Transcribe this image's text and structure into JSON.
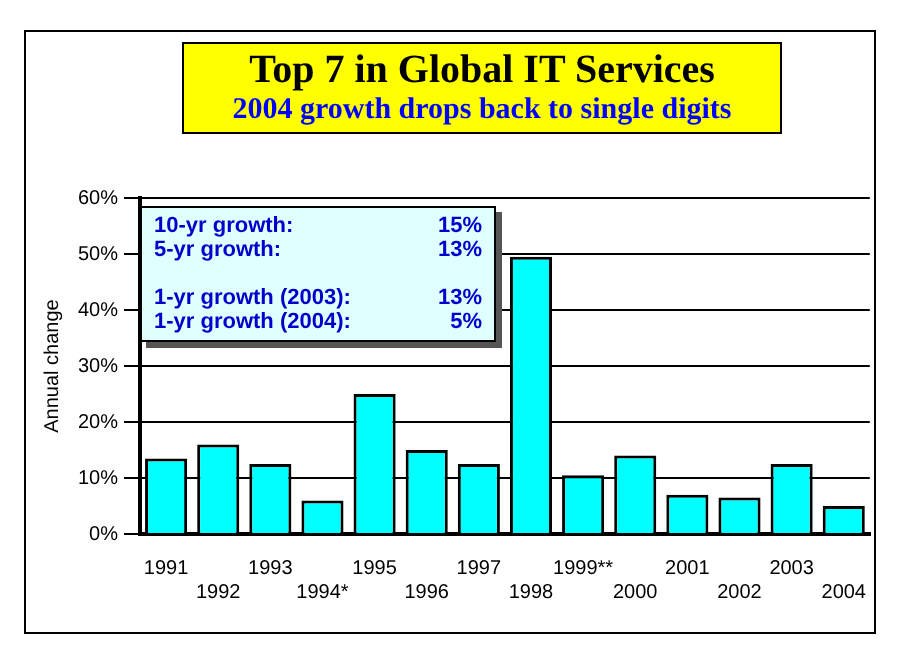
{
  "chart_data": {
    "type": "bar",
    "title": "Top 7 in Global IT Services",
    "subtitle": "2004 growth drops back to single digits",
    "ylabel": "Annual change",
    "categories": [
      "1991",
      "1992",
      "1993",
      "1994*",
      "1995",
      "1996",
      "1997",
      "1998",
      "1999**",
      "2000",
      "2001",
      "2002",
      "2003",
      "2004"
    ],
    "values": [
      13.5,
      16,
      12.5,
      6,
      25,
      15,
      12.5,
      49.5,
      10.5,
      14,
      7,
      6.5,
      12.5,
      5
    ],
    "color": "#00ffff",
    "ylim": [
      0,
      60
    ],
    "yticks": [
      {
        "value": 0,
        "label": "0%"
      },
      {
        "value": 10,
        "label": "10%"
      },
      {
        "value": 20,
        "label": "20%"
      },
      {
        "value": 30,
        "label": "30%"
      },
      {
        "value": 40,
        "label": "40%"
      },
      {
        "value": 50,
        "label": "50%"
      },
      {
        "value": 60,
        "label": "60%"
      }
    ],
    "grid": "y",
    "legend": false,
    "annotations": [
      "10-yr growth:   15%",
      "5-yr growth:   13%",
      "1-yr growth (2003):   13%",
      "1-yr growth (2004):   5%"
    ]
  }
}
